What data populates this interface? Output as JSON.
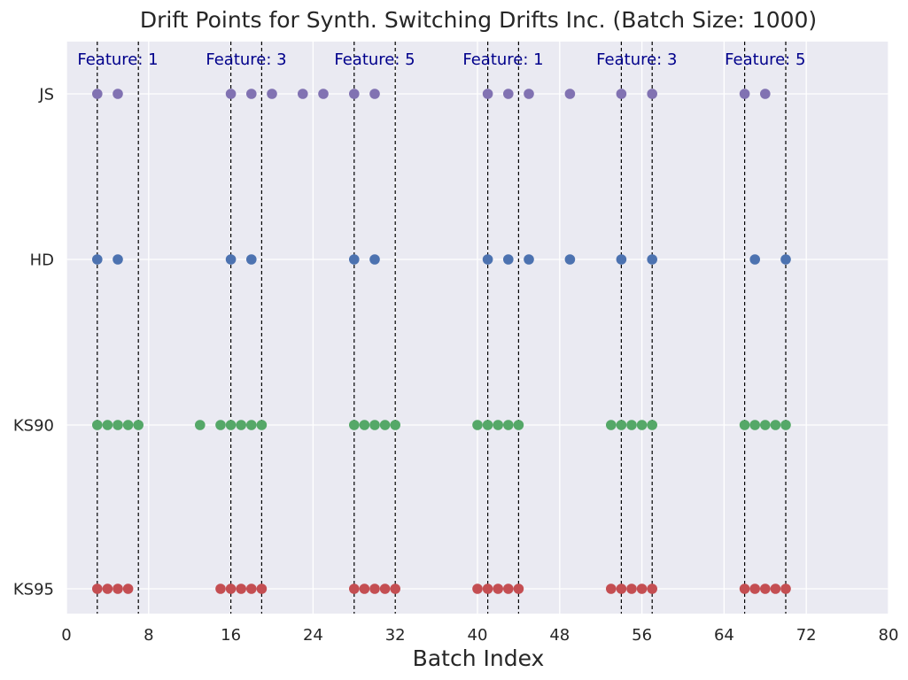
{
  "chart_data": {
    "type": "scatter",
    "title": "Drift Points for Synth. Switching Drifts Inc. (Batch Size: 1000)",
    "xlabel": "Batch Index",
    "ylabel": "",
    "xlim": [
      0,
      80
    ],
    "xticks": [
      0,
      8,
      16,
      24,
      32,
      40,
      48,
      56,
      64,
      72,
      80
    ],
    "categories": [
      "KS95",
      "KS90",
      "HD",
      "JS"
    ],
    "grid": true,
    "background": "#eaeaf2",
    "series": [
      {
        "name": "KS95",
        "color": "#c44e52",
        "x": [
          3,
          4,
          5,
          6,
          15,
          16,
          17,
          18,
          19,
          28,
          29,
          30,
          31,
          32,
          40,
          41,
          42,
          43,
          44,
          53,
          54,
          55,
          56,
          57,
          66,
          67,
          68,
          69,
          70
        ]
      },
      {
        "name": "KS90",
        "color": "#55a868",
        "x": [
          3,
          4,
          5,
          6,
          7,
          13,
          15,
          16,
          17,
          18,
          19,
          28,
          29,
          30,
          31,
          32,
          40,
          41,
          42,
          43,
          44,
          53,
          54,
          55,
          56,
          57,
          66,
          67,
          68,
          69,
          70
        ]
      },
      {
        "name": "HD",
        "color": "#4c72b0",
        "x": [
          3,
          5,
          16,
          18,
          28,
          30,
          41,
          43,
          45,
          49,
          54,
          57,
          67,
          70
        ]
      },
      {
        "name": "JS",
        "color": "#8172b2",
        "x": [
          3,
          5,
          16,
          18,
          20,
          23,
          25,
          28,
          30,
          41,
          43,
          45,
          49,
          54,
          57,
          66,
          68
        ]
      }
    ],
    "vlines": [
      3,
      7,
      16,
      19,
      28,
      32,
      41,
      44,
      54,
      57,
      66,
      70
    ],
    "vline_color": "#000000",
    "annotations": [
      {
        "text": "Feature: 1",
        "x": 5
      },
      {
        "text": "Feature: 3",
        "x": 17.5
      },
      {
        "text": "Feature: 5",
        "x": 30
      },
      {
        "text": "Feature: 1",
        "x": 42.5
      },
      {
        "text": "Feature: 3",
        "x": 55.5
      },
      {
        "text": "Feature: 5",
        "x": 68
      }
    ],
    "annotation_color": "#00008b"
  }
}
